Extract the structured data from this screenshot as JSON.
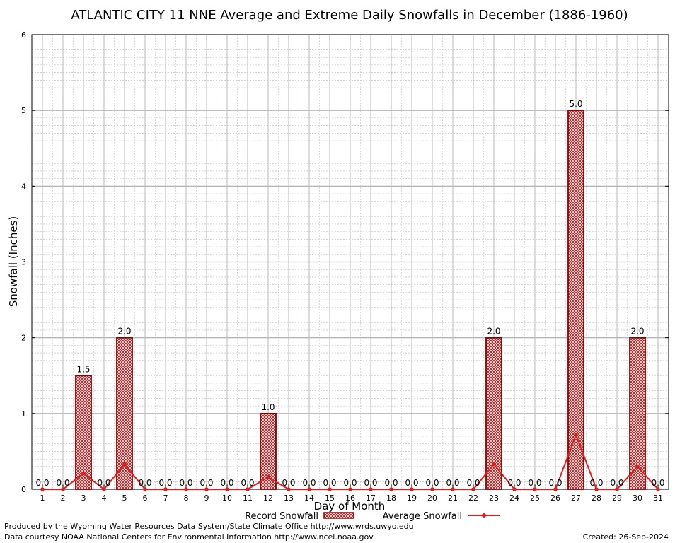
{
  "chart_data": {
    "type": "bar",
    "title": "ATLANTIC CITY 11 NNE Average and Extreme Daily Snowfalls in December (1886-1960)",
    "xlabel": "Day of Month",
    "ylabel": "Snowfall (Inches)",
    "ylim": [
      0,
      6
    ],
    "yticks": [
      "0",
      "1",
      "2",
      "3",
      "4",
      "5",
      "6"
    ],
    "grid": true,
    "legend_position": "bottom",
    "categories": [
      "1",
      "2",
      "3",
      "4",
      "5",
      "6",
      "7",
      "8",
      "9",
      "10",
      "11",
      "12",
      "13",
      "14",
      "15",
      "16",
      "17",
      "18",
      "19",
      "20",
      "21",
      "22",
      "23",
      "24",
      "25",
      "26",
      "27",
      "28",
      "29",
      "30",
      "31"
    ],
    "series": [
      {
        "name": "Record Snowfall",
        "kind": "bar",
        "color": "#8b0000",
        "values": [
          0,
          0,
          1.5,
          0,
          2.0,
          0,
          0,
          0,
          0,
          0,
          0,
          1.0,
          0,
          0,
          0,
          0,
          0,
          0,
          0,
          0,
          0,
          0,
          2.0,
          0,
          0,
          0,
          5.0,
          0,
          0,
          2.0,
          0
        ],
        "labels": [
          "0.0",
          "0.0",
          "1.5",
          "0.0",
          "2.0",
          "0.0",
          "0.0",
          "0.0",
          "0.0",
          "0.0",
          "0.0",
          "1.0",
          "0.0",
          "0.0",
          "0.0",
          "0.0",
          "0.0",
          "0.0",
          "0.0",
          "0.0",
          "0.0",
          "0.0",
          "2.0",
          "0.0",
          "0.0",
          "0.0",
          "5.0",
          "0.0",
          "0.0",
          "2.0",
          "0.0"
        ]
      },
      {
        "name": "Average Snowfall",
        "kind": "line",
        "color": "#e8191a",
        "values": [
          0,
          0,
          0.21,
          0,
          0.33,
          0,
          0,
          0,
          0,
          0,
          0,
          0.16,
          0,
          0,
          0,
          0,
          0,
          0,
          0,
          0,
          0,
          0,
          0.33,
          0,
          0,
          0,
          0.72,
          0,
          0,
          0.3,
          0
        ]
      }
    ]
  },
  "footer": {
    "producer": "Produced by the Wyoming Water Resources Data System/State Climate Office http://www.wrds.uwyo.edu",
    "courtesy": "Data courtesy NOAA National Centers for Environmental Information http://www.ncei.noaa.gov",
    "created": "Created:  26-Sep-2024"
  }
}
